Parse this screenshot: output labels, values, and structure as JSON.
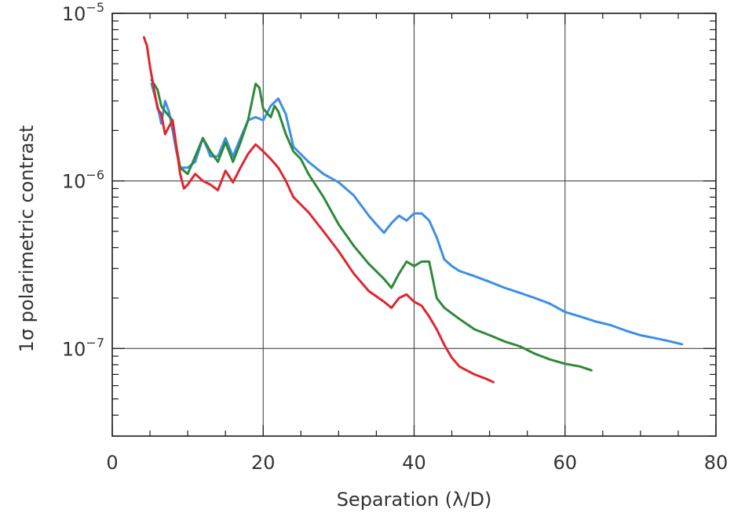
{
  "chart_data": {
    "type": "line",
    "xlabel": "Separation (λ/D)",
    "ylabel": "1σ polarimetric contrast",
    "xlim": [
      0,
      80
    ],
    "ylim": [
      3e-08,
      1e-05
    ],
    "yscale": "log",
    "grid": true,
    "x_ticks": [
      0,
      20,
      40,
      60,
      80
    ],
    "y_ticks": [
      {
        "value": 1e-05,
        "mantissa": "10",
        "exponent": "−5"
      },
      {
        "value": 1e-06,
        "mantissa": "10",
        "exponent": "−6"
      },
      {
        "value": 1e-07,
        "mantissa": "10",
        "exponent": "−7"
      }
    ],
    "series": [
      {
        "color": "#3b8fe6",
        "points": [
          [
            5.2,
            3.8e-06
          ],
          [
            6,
            2.8e-06
          ],
          [
            6.5,
            2.2e-06
          ],
          [
            7,
            3e-06
          ],
          [
            7.5,
            2.6e-06
          ],
          [
            8,
            2e-06
          ],
          [
            8.5,
            1.5e-06
          ],
          [
            9,
            1.2e-06
          ],
          [
            10,
            1.2e-06
          ],
          [
            11,
            1.3e-06
          ],
          [
            12,
            1.8e-06
          ],
          [
            12.5,
            1.6e-06
          ],
          [
            13,
            1.4e-06
          ],
          [
            14,
            1.4e-06
          ],
          [
            15,
            1.8e-06
          ],
          [
            16,
            1.4e-06
          ],
          [
            17,
            1.8e-06
          ],
          [
            18,
            2.3e-06
          ],
          [
            19,
            2.4e-06
          ],
          [
            20,
            2.3e-06
          ],
          [
            21,
            2.8e-06
          ],
          [
            22,
            3.1e-06
          ],
          [
            23,
            2.5e-06
          ],
          [
            24,
            1.6e-06
          ],
          [
            26,
            1.3e-06
          ],
          [
            28,
            1.1e-06
          ],
          [
            30,
            9.8e-07
          ],
          [
            32,
            8.2e-07
          ],
          [
            34,
            6.2e-07
          ],
          [
            35,
            5.5e-07
          ],
          [
            36,
            4.9e-07
          ],
          [
            37,
            5.6e-07
          ],
          [
            38,
            6.2e-07
          ],
          [
            39,
            5.8e-07
          ],
          [
            40,
            6.4e-07
          ],
          [
            41,
            6.4e-07
          ],
          [
            42,
            5.8e-07
          ],
          [
            43,
            4.6e-07
          ],
          [
            44,
            3.4e-07
          ],
          [
            45,
            3.1e-07
          ],
          [
            46,
            2.9e-07
          ],
          [
            48,
            2.7e-07
          ],
          [
            50,
            2.5e-07
          ],
          [
            52,
            2.3e-07
          ],
          [
            54,
            2.15e-07
          ],
          [
            56,
            2e-07
          ],
          [
            58,
            1.85e-07
          ],
          [
            60,
            1.65e-07
          ],
          [
            62,
            1.55e-07
          ],
          [
            64,
            1.45e-07
          ],
          [
            66,
            1.38e-07
          ],
          [
            68,
            1.28e-07
          ],
          [
            70,
            1.2e-07
          ],
          [
            72,
            1.15e-07
          ],
          [
            74,
            1.1e-07
          ],
          [
            75.5,
            1.06e-07
          ]
        ]
      },
      {
        "color": "#2d8a3a",
        "points": [
          [
            5.2,
            4e-06
          ],
          [
            6,
            3.5e-06
          ],
          [
            6.5,
            2.8e-06
          ],
          [
            7,
            2.6e-06
          ],
          [
            8,
            2.3e-06
          ],
          [
            8.5,
            1.6e-06
          ],
          [
            9,
            1.2e-06
          ],
          [
            10,
            1.1e-06
          ],
          [
            11,
            1.4e-06
          ],
          [
            12,
            1.8e-06
          ],
          [
            13,
            1.5e-06
          ],
          [
            14,
            1.3e-06
          ],
          [
            15,
            1.7e-06
          ],
          [
            16,
            1.3e-06
          ],
          [
            17,
            1.7e-06
          ],
          [
            18,
            2.3e-06
          ],
          [
            19,
            3.8e-06
          ],
          [
            19.5,
            3.6e-06
          ],
          [
            20,
            2.7e-06
          ],
          [
            21,
            2.4e-06
          ],
          [
            21.5,
            2.8e-06
          ],
          [
            22,
            2.6e-06
          ],
          [
            23,
            1.9e-06
          ],
          [
            24,
            1.5e-06
          ],
          [
            25,
            1.35e-06
          ],
          [
            26,
            1.1e-06
          ],
          [
            28,
            8e-07
          ],
          [
            30,
            5.5e-07
          ],
          [
            32,
            4.1e-07
          ],
          [
            34,
            3.2e-07
          ],
          [
            36,
            2.6e-07
          ],
          [
            37,
            2.3e-07
          ],
          [
            38,
            2.8e-07
          ],
          [
            39,
            3.3e-07
          ],
          [
            40,
            3.1e-07
          ],
          [
            41,
            3.3e-07
          ],
          [
            42,
            3.3e-07
          ],
          [
            43,
            2e-07
          ],
          [
            44,
            1.75e-07
          ],
          [
            46,
            1.5e-07
          ],
          [
            48,
            1.3e-07
          ],
          [
            50,
            1.2e-07
          ],
          [
            52,
            1.1e-07
          ],
          [
            54,
            1.03e-07
          ],
          [
            56,
            9.3e-08
          ],
          [
            58,
            8.6e-08
          ],
          [
            60,
            8.1e-08
          ],
          [
            62,
            7.8e-08
          ],
          [
            63.5,
            7.4e-08
          ]
        ]
      },
      {
        "color": "#e0262f",
        "points": [
          [
            4.2,
            7.2e-06
          ],
          [
            4.6,
            6.4e-06
          ],
          [
            5,
            4.8e-06
          ],
          [
            5.5,
            3.6e-06
          ],
          [
            6,
            2.7e-06
          ],
          [
            6.5,
            2.5e-06
          ],
          [
            7,
            1.9e-06
          ],
          [
            7.5,
            2.1e-06
          ],
          [
            8,
            2.3e-06
          ],
          [
            8.5,
            1.6e-06
          ],
          [
            9,
            1.1e-06
          ],
          [
            9.5,
            9e-07
          ],
          [
            10,
            9.5e-07
          ],
          [
            11,
            1.1e-06
          ],
          [
            12,
            1e-06
          ],
          [
            13,
            9.5e-07
          ],
          [
            14,
            8.8e-07
          ],
          [
            15,
            1.15e-06
          ],
          [
            16,
            9.8e-07
          ],
          [
            17,
            1.2e-06
          ],
          [
            18,
            1.45e-06
          ],
          [
            19,
            1.65e-06
          ],
          [
            20,
            1.5e-06
          ],
          [
            21,
            1.35e-06
          ],
          [
            22,
            1.2e-06
          ],
          [
            23,
            1e-06
          ],
          [
            24,
            8e-07
          ],
          [
            26,
            6.5e-07
          ],
          [
            28,
            5e-07
          ],
          [
            30,
            3.8e-07
          ],
          [
            32,
            2.8e-07
          ],
          [
            34,
            2.2e-07
          ],
          [
            36,
            1.9e-07
          ],
          [
            37,
            1.75e-07
          ],
          [
            38,
            2e-07
          ],
          [
            39,
            2.1e-07
          ],
          [
            40,
            1.9e-07
          ],
          [
            41,
            1.8e-07
          ],
          [
            42,
            1.55e-07
          ],
          [
            43,
            1.3e-07
          ],
          [
            44,
            1.05e-07
          ],
          [
            45,
            8.8e-08
          ],
          [
            46,
            7.8e-08
          ],
          [
            48,
            7e-08
          ],
          [
            49.5,
            6.6e-08
          ],
          [
            50.5,
            6.3e-08
          ]
        ]
      }
    ]
  }
}
